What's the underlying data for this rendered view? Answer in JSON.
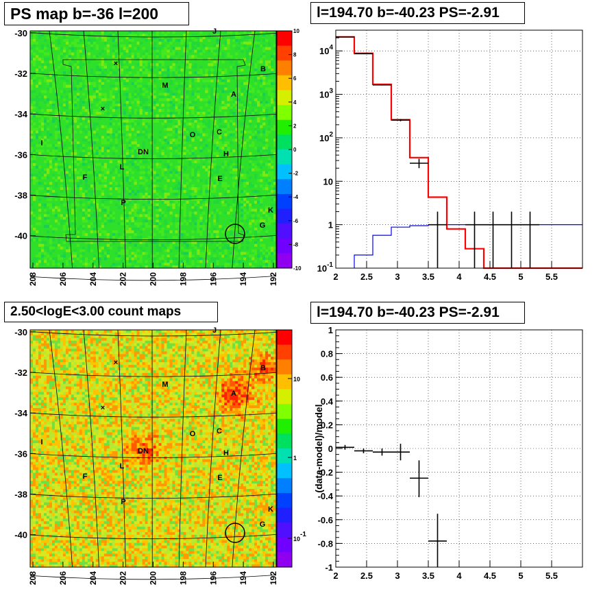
{
  "titles": {
    "ps_map": "PS map b=-36 l=200",
    "spectrum": "l=194.70 b=-40.23 PS=-2.91",
    "count_maps": "2.50<logE<3.00 count maps",
    "residual": "l=194.70 b=-40.23 PS=-2.91"
  },
  "map_axes": {
    "y_ticks": [
      "-30",
      "-32",
      "-34",
      "-36",
      "-38",
      "-40"
    ],
    "x_ticks": [
      "208",
      "206",
      "204",
      "202",
      "200",
      "198",
      "196",
      "194",
      "192"
    ],
    "labels": [
      "J",
      "B",
      "M",
      "A",
      "I",
      "O",
      "C",
      "DN",
      "H",
      "F",
      "L",
      "E",
      "P",
      "K",
      "G"
    ]
  },
  "colors": {
    "data": "#000000",
    "model": "#ff0000",
    "background": "#0000ff"
  },
  "chart_data": [
    {
      "type": "heatmap",
      "name": "ps_map",
      "zlim": [
        -10,
        10
      ],
      "colorbar_ticks": [
        "10",
        "8",
        "6",
        "4",
        "2",
        "0",
        "-2",
        "-4",
        "-6",
        "-8",
        "-10"
      ],
      "xlim": [
        208,
        192
      ],
      "ylim": [
        -41.6,
        -29.9
      ],
      "source_circle": {
        "l": 194.7,
        "b": -40.23
      }
    },
    {
      "type": "line",
      "name": "spectrum",
      "xlim": [
        2,
        6
      ],
      "ylim": [
        0.1,
        30000
      ],
      "yscale": "log",
      "x_ticks": [
        "2",
        "2.5",
        "3",
        "3.5",
        "4",
        "4.5",
        "5",
        "5.5"
      ],
      "y_ticks": [
        "10^-1",
        "1",
        "10",
        "10^2",
        "10^3",
        "10^4"
      ],
      "model_steps": [
        {
          "x0": 2.0,
          "x1": 2.3,
          "y": 21000
        },
        {
          "x0": 2.3,
          "x1": 2.6,
          "y": 8800
        },
        {
          "x0": 2.6,
          "x1": 2.9,
          "y": 1700
        },
        {
          "x0": 2.9,
          "x1": 3.2,
          "y": 260
        },
        {
          "x0": 3.2,
          "x1": 3.5,
          "y": 35
        },
        {
          "x0": 3.5,
          "x1": 3.8,
          "y": 4.3
        },
        {
          "x0": 3.8,
          "x1": 4.1,
          "y": 0.8
        },
        {
          "x0": 4.1,
          "x1": 4.4,
          "y": 0.28
        },
        {
          "x0": 4.4,
          "x1": 6.0,
          "y": 0.1
        }
      ],
      "background_steps": [
        {
          "x0": 2.3,
          "x1": 2.6,
          "y": 0.2
        },
        {
          "x0": 2.6,
          "x1": 2.9,
          "y": 0.57
        },
        {
          "x0": 2.9,
          "x1": 3.2,
          "y": 0.88
        },
        {
          "x0": 3.2,
          "x1": 3.5,
          "y": 0.95
        },
        {
          "x0": 3.5,
          "x1": 6.0,
          "y": 1.0
        }
      ],
      "data_points": [
        {
          "x": 2.15,
          "xlo": 2.0,
          "xhi": 2.3,
          "y": 21000,
          "ylo": 20500,
          "yhi": 21500
        },
        {
          "x": 2.45,
          "xlo": 2.3,
          "xhi": 2.6,
          "y": 8600,
          "ylo": 8400,
          "yhi": 8800
        },
        {
          "x": 2.75,
          "xlo": 2.6,
          "xhi": 2.9,
          "y": 1650,
          "ylo": 1600,
          "yhi": 1700
        },
        {
          "x": 3.05,
          "xlo": 2.9,
          "xhi": 3.2,
          "y": 255,
          "ylo": 240,
          "yhi": 270
        },
        {
          "x": 3.35,
          "xlo": 3.2,
          "xhi": 3.5,
          "y": 26,
          "ylo": 20,
          "yhi": 33
        },
        {
          "x": 3.65,
          "xlo": 3.5,
          "xhi": 3.8,
          "y": 1,
          "ylo": 0.1,
          "yhi": 2
        },
        {
          "x": 4.25,
          "xlo": 4.1,
          "xhi": 4.4,
          "y": 1,
          "ylo": 0.1,
          "yhi": 2
        },
        {
          "x": 4.55,
          "xlo": 4.4,
          "xhi": 4.7,
          "y": 1,
          "ylo": 0.1,
          "yhi": 2
        },
        {
          "x": 4.85,
          "xlo": 4.7,
          "xhi": 5.0,
          "y": 1,
          "ylo": 0.1,
          "yhi": 2
        },
        {
          "x": 5.15,
          "xlo": 5.0,
          "xhi": 5.3,
          "y": 1,
          "ylo": 0.1,
          "yhi": 2
        }
      ]
    },
    {
      "type": "heatmap",
      "name": "count_maps",
      "zscale": "log",
      "colorbar_ticks": [
        "10",
        "1",
        "10^-1"
      ],
      "xlim": [
        208,
        192
      ],
      "ylim": [
        -41.6,
        -29.9
      ],
      "source_circle": {
        "l": 194.7,
        "b": -40.23
      }
    },
    {
      "type": "scatter",
      "name": "residual",
      "xlim": [
        2,
        6
      ],
      "ylim": [
        -1,
        1
      ],
      "ylabel": "(data-model)/model",
      "x_ticks": [
        "2",
        "2.5",
        "3",
        "3.5",
        "4",
        "4.5",
        "5",
        "5.5"
      ],
      "y_ticks": [
        "1",
        "0.8",
        "0.6",
        "0.4",
        "0.2",
        "0",
        "-0.2",
        "-0.4",
        "-0.6",
        "-0.8",
        "-1"
      ],
      "points": [
        {
          "x": 2.15,
          "xlo": 2.0,
          "xhi": 2.3,
          "y": 0.01,
          "ylo": -0.01,
          "yhi": 0.03
        },
        {
          "x": 2.45,
          "xlo": 2.3,
          "xhi": 2.6,
          "y": -0.02,
          "ylo": -0.04,
          "yhi": 0.0
        },
        {
          "x": 2.75,
          "xlo": 2.6,
          "xhi": 2.9,
          "y": -0.03,
          "ylo": -0.06,
          "yhi": 0.0
        },
        {
          "x": 3.05,
          "xlo": 2.9,
          "xhi": 3.2,
          "y": -0.03,
          "ylo": -0.1,
          "yhi": 0.04
        },
        {
          "x": 3.35,
          "xlo": 3.2,
          "xhi": 3.5,
          "y": -0.25,
          "ylo": -0.41,
          "yhi": -0.1
        },
        {
          "x": 3.65,
          "xlo": 3.5,
          "xhi": 3.8,
          "y": -0.78,
          "ylo": -1.0,
          "yhi": -0.55
        }
      ]
    }
  ]
}
